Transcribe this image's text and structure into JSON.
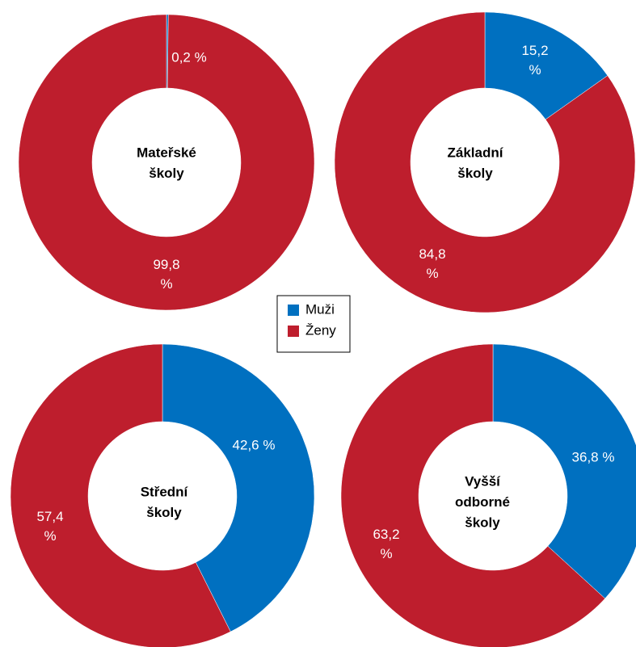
{
  "chart_data": [
    {
      "type": "pie",
      "title": [
        "Mateřské",
        "školy"
      ],
      "values": [
        0.2,
        99.8
      ],
      "value_labels": [
        "0,2 %",
        "99,8 %"
      ]
    },
    {
      "type": "pie",
      "title": [
        "Základní",
        "školy"
      ],
      "values": [
        15.2,
        84.8
      ],
      "value_labels": [
        "15,2 %",
        "84,8 %"
      ]
    },
    {
      "type": "pie",
      "title": [
        "Střední",
        "školy"
      ],
      "values": [
        42.6,
        57.4
      ],
      "value_labels": [
        "42,6 %",
        "57,4 %"
      ]
    },
    {
      "type": "pie",
      "title": [
        "Vyšší",
        "odborné",
        "školy"
      ],
      "values": [
        36.8,
        63.2
      ],
      "value_labels": [
        "36,8 %",
        "63,2 %"
      ]
    }
  ],
  "legend": {
    "categories": [
      "Muži",
      "Ženy"
    ],
    "colors": [
      "#0070c0",
      "#be1e2d"
    ]
  }
}
